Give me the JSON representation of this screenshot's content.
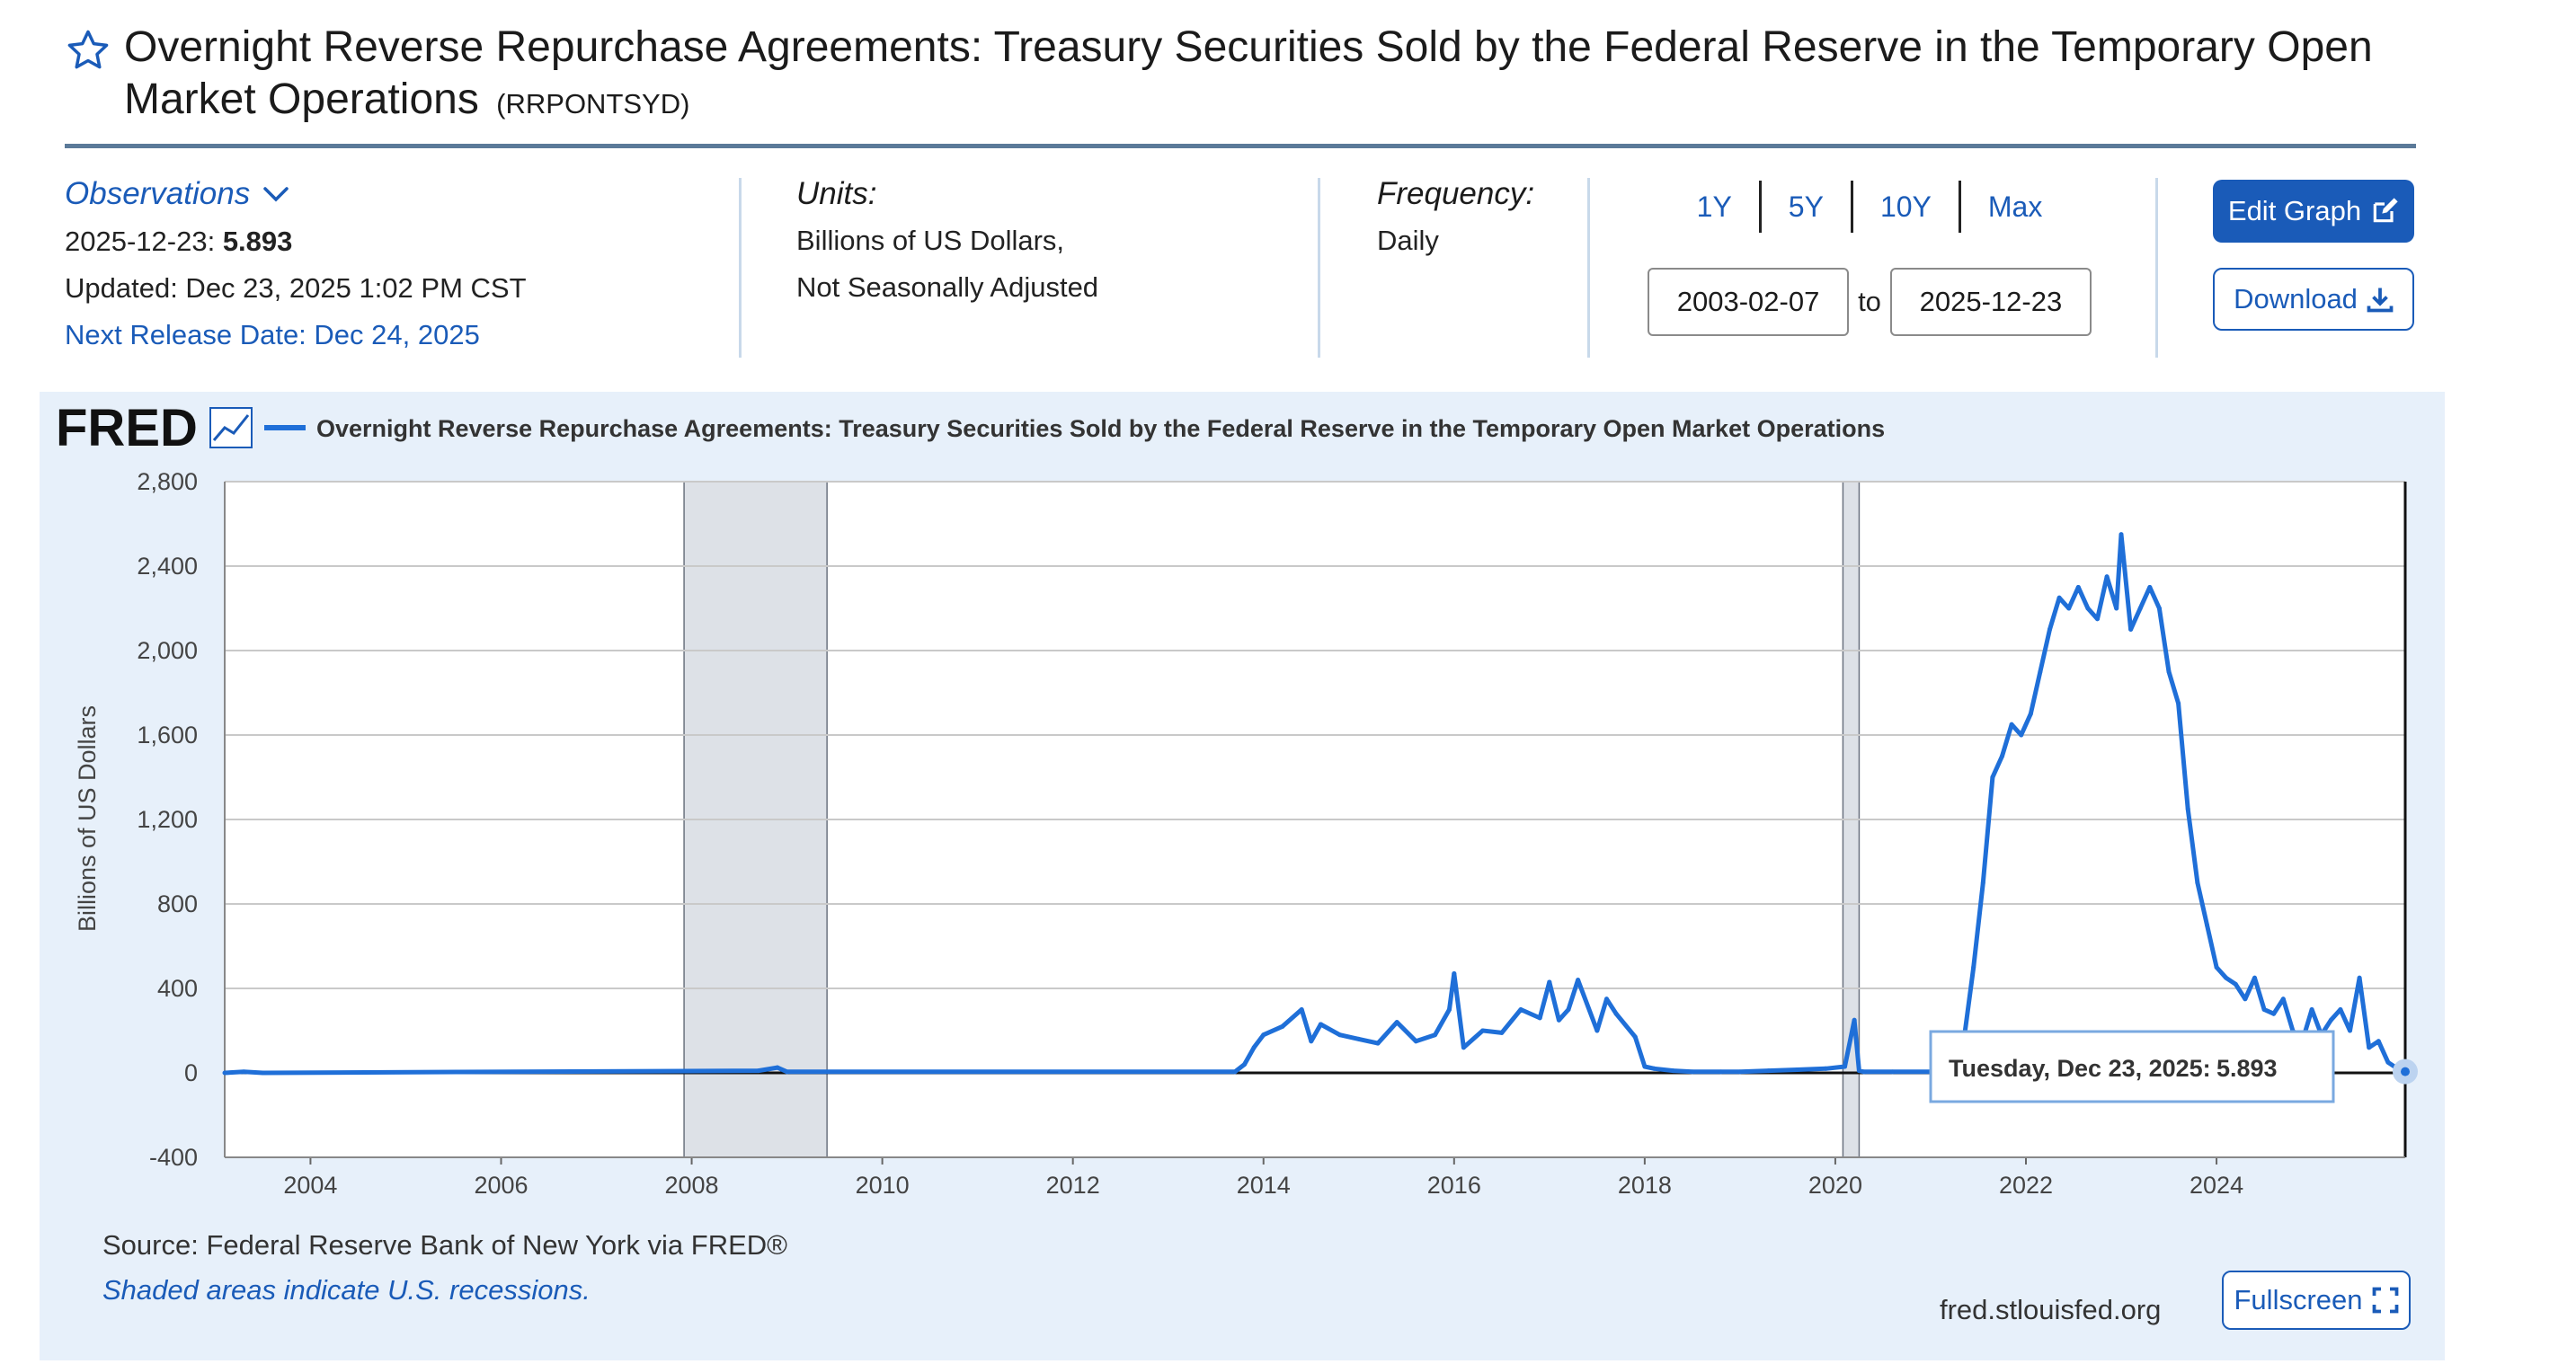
{
  "header": {
    "title": "Overnight Reverse Repurchase Agreements: Treasury Securities Sold by the Federal Reserve in the Temporary Open Market Operations",
    "series_id": "(RRPONTSYD)"
  },
  "observations": {
    "label": "Observations",
    "date": "2025-12-23:",
    "value": "5.893",
    "updated": "Updated: Dec 23, 2025 1:02 PM CST",
    "next_release": "Next Release Date: Dec 24, 2025"
  },
  "units": {
    "label": "Units:",
    "line1": "Billions of US Dollars,",
    "line2": "Not Seasonally Adjusted"
  },
  "frequency": {
    "label": "Frequency:",
    "value": "Daily"
  },
  "range": {
    "buttons": [
      "1Y",
      "5Y",
      "10Y",
      "Max"
    ],
    "start": "2003-02-07",
    "to": "to",
    "end": "2025-12-23"
  },
  "actions": {
    "edit": "Edit Graph",
    "download": "Download",
    "fullscreen": "Fullscreen"
  },
  "chart": {
    "logo": "FRED",
    "source": "Source: Federal Reserve Bank of New York via FRED®",
    "recessions": "Shaded areas indicate U.S. recessions.",
    "url": "fred.stlouisfed.org",
    "tooltip_label": "Tuesday, Dec 23, 2025:",
    "tooltip_value": "5.893"
  },
  "colors": {
    "accent": "#1a5bb8",
    "series": "#1f6fd8",
    "panel": "#e7f0fa",
    "recession": "#dde1e7"
  },
  "chart_data": {
    "type": "line",
    "title": "Overnight Reverse Repurchase Agreements: Treasury Securities Sold by the Federal Reserve in the Temporary Open Market Operations",
    "xlabel": "",
    "ylabel": "Billions of US Dollars",
    "xlim": [
      2003.1,
      2025.98
    ],
    "ylim": [
      -400,
      2800
    ],
    "yticks": [
      -400,
      0,
      400,
      800,
      1200,
      1600,
      2000,
      2400,
      2800
    ],
    "yticklabels": [
      "-400",
      "0",
      "400",
      "800",
      "1,200",
      "1,600",
      "2,000",
      "2,400",
      "2,800"
    ],
    "xticks": [
      2004,
      2006,
      2008,
      2010,
      2012,
      2014,
      2016,
      2018,
      2020,
      2022,
      2024
    ],
    "recessions": [
      [
        2007.92,
        2009.42
      ],
      [
        2020.08,
        2020.25
      ]
    ],
    "series": [
      {
        "name": "RRPONTSYD",
        "x": [
          2003.1,
          2003.3,
          2003.5,
          2008.7,
          2008.9,
          2009.0,
          2013.7,
          2013.8,
          2013.9,
          2014.0,
          2014.2,
          2014.4,
          2014.5,
          2014.6,
          2014.8,
          2015.0,
          2015.2,
          2015.4,
          2015.6,
          2015.8,
          2015.95,
          2016.0,
          2016.1,
          2016.3,
          2016.5,
          2016.7,
          2016.9,
          2017.0,
          2017.1,
          2017.2,
          2017.3,
          2017.5,
          2017.6,
          2017.7,
          2017.9,
          2018.0,
          2018.1,
          2018.3,
          2018.5,
          2018.8,
          2019.0,
          2019.3,
          2019.6,
          2019.9,
          2020.1,
          2020.2,
          2020.25,
          2020.3,
          2020.6,
          2021.0,
          2021.2,
          2021.35,
          2021.45,
          2021.55,
          2021.65,
          2021.75,
          2021.85,
          2021.95,
          2022.05,
          2022.15,
          2022.25,
          2022.35,
          2022.45,
          2022.55,
          2022.65,
          2022.75,
          2022.85,
          2022.95,
          2023.0,
          2023.1,
          2023.2,
          2023.3,
          2023.4,
          2023.5,
          2023.6,
          2023.7,
          2023.8,
          2023.9,
          2024.0,
          2024.1,
          2024.2,
          2024.3,
          2024.4,
          2024.5,
          2024.6,
          2024.7,
          2024.8,
          2024.9,
          2025.0,
          2025.1,
          2025.2,
          2025.3,
          2025.4,
          2025.5,
          2025.6,
          2025.7,
          2025.8,
          2025.9,
          2025.98
        ],
        "y": [
          0,
          5,
          0,
          10,
          25,
          5,
          5,
          40,
          120,
          180,
          220,
          300,
          150,
          230,
          180,
          160,
          140,
          240,
          150,
          180,
          300,
          470,
          120,
          200,
          190,
          300,
          260,
          430,
          250,
          300,
          440,
          200,
          350,
          280,
          170,
          30,
          20,
          10,
          5,
          5,
          5,
          10,
          15,
          20,
          30,
          250,
          10,
          5,
          5,
          5,
          0,
          160,
          500,
          900,
          1400,
          1500,
          1650,
          1600,
          1700,
          1900,
          2100,
          2250,
          2200,
          2300,
          2200,
          2150,
          2350,
          2200,
          2550,
          2100,
          2200,
          2300,
          2200,
          1900,
          1750,
          1250,
          900,
          700,
          500,
          450,
          420,
          350,
          450,
          300,
          280,
          350,
          200,
          150,
          300,
          180,
          250,
          300,
          200,
          450,
          120,
          150,
          50,
          20,
          5.893
        ]
      }
    ]
  }
}
